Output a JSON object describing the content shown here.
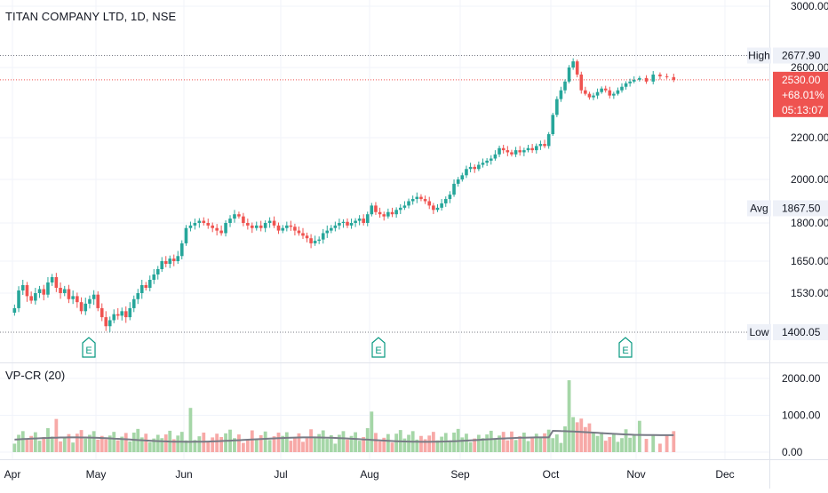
{
  "chart_data": {
    "type": "candlestick",
    "title": "TITAN COMPANY LTD, 1D, NSE",
    "price_axis": {
      "ticks": [
        "3000.00",
        "2600.00",
        "2200.00",
        "2000.00",
        "1800.00",
        "1650.00",
        "1530.00",
        "1400.05"
      ],
      "tick_values": [
        3000,
        2600,
        2200,
        2000,
        1800,
        1650,
        1530,
        1400.05
      ]
    },
    "x_axis": {
      "labels": [
        "Apr",
        "May",
        "Jun",
        "Jul",
        "Aug",
        "Sep",
        "Oct",
        "Nov",
        "Dec"
      ]
    },
    "markers": {
      "high": {
        "label": "High",
        "value": "2677.90"
      },
      "avg": {
        "label": "Avg",
        "value": "1867.50"
      },
      "low": {
        "label": "Low",
        "value": "1400.05"
      },
      "last": {
        "price": "2530.00",
        "change": "+68.01%",
        "countdown": "05:13:07"
      }
    },
    "earnings_label": "E",
    "earnings_months": [
      "May",
      "Aug",
      "Oct"
    ],
    "series": [
      {
        "month": "Apr",
        "closes": [
          1480,
          1540,
          1560,
          1520,
          1505,
          1530,
          1545,
          1525,
          1570,
          1590,
          1550,
          1530,
          1545,
          1510,
          1520,
          1500,
          1470,
          1495,
          1510,
          1525
        ]
      },
      {
        "month": "May",
        "closes": [
          1480,
          1450,
          1420,
          1440,
          1460,
          1455,
          1470,
          1450,
          1480,
          1510,
          1530,
          1560,
          1550,
          1580,
          1600,
          1620,
          1650,
          1640,
          1660,
          1650,
          1670,
          1720
        ]
      },
      {
        "month": "Jun",
        "closes": [
          1780,
          1790,
          1800,
          1810,
          1800,
          1790,
          1780,
          1770,
          1760,
          1800,
          1820,
          1840,
          1830,
          1800,
          1790,
          1780,
          1790,
          1780,
          1800,
          1810,
          1790,
          1770
        ]
      },
      {
        "month": "Jul",
        "closes": [
          1780,
          1790,
          1785,
          1770,
          1760,
          1750,
          1740,
          1720,
          1730,
          1735,
          1760,
          1770,
          1780,
          1790,
          1800,
          1805,
          1790,
          1800,
          1810,
          1820,
          1800,
          1840
        ]
      },
      {
        "month": "Aug",
        "closes": [
          1880,
          1850,
          1840,
          1830,
          1850,
          1840,
          1860,
          1870,
          1880,
          1900,
          1910,
          1920,
          1910,
          1900,
          1880,
          1860,
          1870,
          1890,
          1910,
          1930,
          1980,
          2000
        ]
      },
      {
        "month": "Sep",
        "closes": [
          2020,
          2050,
          2060,
          2050,
          2070,
          2080,
          2090,
          2100,
          2120,
          2150,
          2140,
          2130,
          2120,
          2140,
          2130,
          2140,
          2150,
          2140,
          2160,
          2170,
          2160,
          2220
        ]
      },
      {
        "month": "Oct",
        "closes": [
          2330,
          2420,
          2470,
          2520,
          2600,
          2640,
          2560,
          2470,
          2450,
          2430,
          2440,
          2460,
          2480,
          2470,
          2440,
          2450,
          2470,
          2490,
          2510,
          2520,
          2530
        ]
      },
      {
        "month": "Nov",
        "closes": [
          2540,
          2520,
          2560,
          2550,
          2545,
          2530
        ]
      }
    ],
    "volume": {
      "label": "VP-CR (20)",
      "ticks": [
        "2000.00",
        "1000.00",
        "0.00"
      ],
      "tick_values": [
        2000,
        1000,
        0
      ],
      "peaks": [
        {
          "month": "Apr",
          "value": 900
        },
        {
          "month": "Jun",
          "value": 1200
        },
        {
          "month": "Aug",
          "value": 1100
        },
        {
          "month": "Oct",
          "value": 1950
        },
        {
          "month": "Oct",
          "value": 950
        },
        {
          "month": "Nov",
          "value": 850
        }
      ]
    }
  }
}
